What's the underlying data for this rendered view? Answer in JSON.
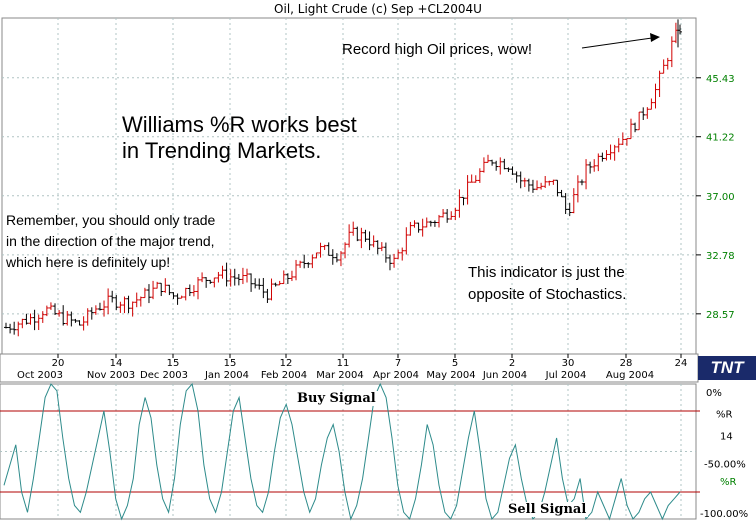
{
  "chart_title": "Oil, Light Crude (c) Sep +CL2004U",
  "annotations": {
    "record_high": "Record high Oil prices, wow!",
    "williams": "Williams %R works best\nin Trending Markets.",
    "remember": "Remember, you should only trade\nin the direction of the major trend,\nwhich here is definitely up!",
    "indicator": "This indicator is just the\nopposite of Stochastics."
  },
  "signals": {
    "buy": "Buy Signal",
    "sell": "Sell Signal"
  },
  "logo": "TNT",
  "price_axis_labels": [
    "45.43",
    "41.22",
    "37.00",
    "32.78",
    "28.57"
  ],
  "indicator_axis_labels": [
    "0%",
    "%R",
    "14",
    "-50.00%",
    "%R",
    "-100.00%"
  ],
  "day_ticks": [
    "20",
    "14",
    "15",
    "15",
    "12",
    "11",
    "7",
    "5",
    "2",
    "30",
    "28",
    "24"
  ],
  "month_labels": [
    "Oct 2003",
    "Nov 2003",
    "Dec 2003",
    "Jan 2004",
    "Feb 2004",
    "Mar 2004",
    "Apr 2004",
    "May 2004",
    "Jun 2004",
    "Jul 2004",
    "Aug 2004"
  ],
  "colors": {
    "bar_up": "#d00000",
    "bar_down": "#000000",
    "oscillator": "#2e8b8b",
    "signal_line": "#b00000",
    "grid": "#b0c4c4",
    "axis_green": "#008000"
  },
  "chart_data": [
    {
      "type": "bar",
      "title": "Oil, Light Crude (c) Sep +CL2004U",
      "x_range": [
        "2003-10-01",
        "2004-08-24"
      ],
      "ylim": [
        25.7,
        49.7
      ],
      "y_ticks": [
        28.57,
        32.78,
        37.0,
        41.22,
        45.43
      ],
      "grid": true,
      "series": [
        {
          "x": [
            "2003-10-01",
            "2003-10-14",
            "2003-10-20",
            "2003-10-28",
            "2003-11-06",
            "2003-11-14",
            "2003-11-21",
            "2003-12-01",
            "2003-12-10",
            "2003-12-15",
            "2003-12-22",
            "2004-01-05",
            "2004-01-12",
            "2004-01-15",
            "2004-01-26",
            "2004-02-05",
            "2004-02-12",
            "2004-02-20",
            "2004-03-01",
            "2004-03-11",
            "2004-03-17",
            "2004-03-24",
            "2004-03-31",
            "2004-04-07",
            "2004-04-15",
            "2004-04-26",
            "2004-05-05",
            "2004-05-14",
            "2004-05-24",
            "2004-06-02",
            "2004-06-08",
            "2004-06-15",
            "2004-06-24",
            "2004-06-30",
            "2004-07-09",
            "2004-07-19",
            "2004-07-28",
            "2004-08-04",
            "2004-08-12",
            "2004-08-20",
            "2004-08-24"
          ],
          "close": [
            27.6,
            28.3,
            28.9,
            28.3,
            27.8,
            29.0,
            29.5,
            29.4,
            30.1,
            30.6,
            29.8,
            31.0,
            31.4,
            31.3,
            31.0,
            30.0,
            30.8,
            31.8,
            33.2,
            32.8,
            34.3,
            34.1,
            33.0,
            32.3,
            34.6,
            35.2,
            36.0,
            37.8,
            39.6,
            39.2,
            38.0,
            37.6,
            37.9,
            35.8,
            38.8,
            40.3,
            41.2,
            42.5,
            44.5,
            47.8,
            49.0
          ]
        }
      ]
    },
    {
      "type": "line",
      "title": "%R 14",
      "ylim": [
        -100,
        0
      ],
      "reference_lines": [
        -20,
        -80
      ],
      "series": [
        {
          "name": "%R",
          "values": [
            -75,
            -60,
            -45,
            -80,
            -95,
            -70,
            -40,
            -10,
            0,
            -5,
            -40,
            -70,
            -90,
            -95,
            -80,
            -60,
            -40,
            -20,
            -50,
            -85,
            -100,
            -90,
            -70,
            -30,
            -10,
            -25,
            -60,
            -85,
            -95,
            -70,
            -30,
            -5,
            0,
            -20,
            -60,
            -85,
            -95,
            -80,
            -50,
            -20,
            -10,
            -40,
            -70,
            -90,
            -95,
            -80,
            -50,
            -25,
            -15,
            -30,
            -55,
            -80,
            -95,
            -85,
            -60,
            -40,
            -30,
            -50,
            -80,
            -100,
            -90,
            -70,
            -40,
            -10,
            0,
            -10,
            -40,
            -75,
            -95,
            -100,
            -85,
            -60,
            -30,
            -45,
            -75,
            -95,
            -100,
            -90,
            -65,
            -40,
            -20,
            -50,
            -85,
            -100,
            -95,
            -75,
            -55,
            -45,
            -70,
            -90,
            -100,
            -95,
            -80,
            -60,
            -40,
            -70,
            -90,
            -85,
            -70,
            -100,
            -95,
            -80,
            -90,
            -100,
            -85,
            -70,
            -90,
            -100,
            -95,
            -85,
            -80,
            -90,
            -100,
            -90,
            -85,
            -80
          ]
        }
      ]
    }
  ]
}
